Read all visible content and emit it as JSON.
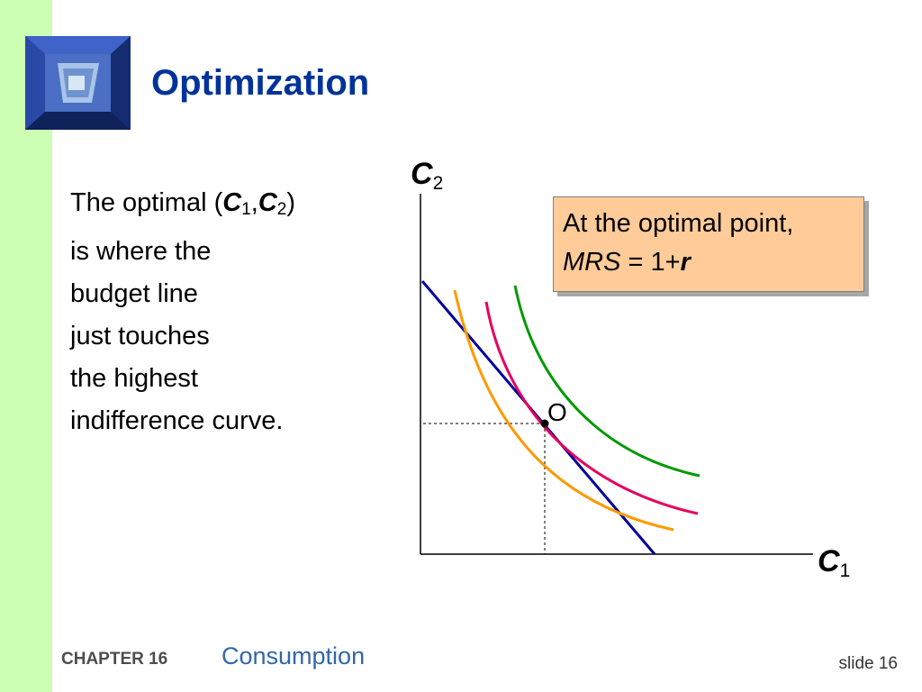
{
  "slide": {
    "title": "Optimization",
    "footer": {
      "chapter": "CHAPTER 16",
      "topic": "Consumption",
      "slide_label": "slide 16"
    }
  },
  "body": {
    "line1_prefix": "The optimal (",
    "var_c": "C",
    "sub1": "1",
    "comma": ",",
    "sub2": "2",
    "line1_suffix": ")",
    "line2": "is where the",
    "line3": "budget line",
    "line4": "just touches",
    "line5": "the highest",
    "line6": "indifference curve."
  },
  "callout": {
    "line1": "At the optimal point,",
    "mrs": "MRS",
    "equals": " = 1+",
    "r": "r",
    "background": "#ffcc99"
  },
  "diagram": {
    "y_axis": {
      "label": "C",
      "sub": "2"
    },
    "x_axis": {
      "label": "C",
      "sub": "1"
    },
    "point_label": "O",
    "colors": {
      "budget_line": "#000099",
      "indifference_low": "#ff9900",
      "indifference_mid": "#e6005c",
      "indifference_high": "#009900"
    }
  }
}
